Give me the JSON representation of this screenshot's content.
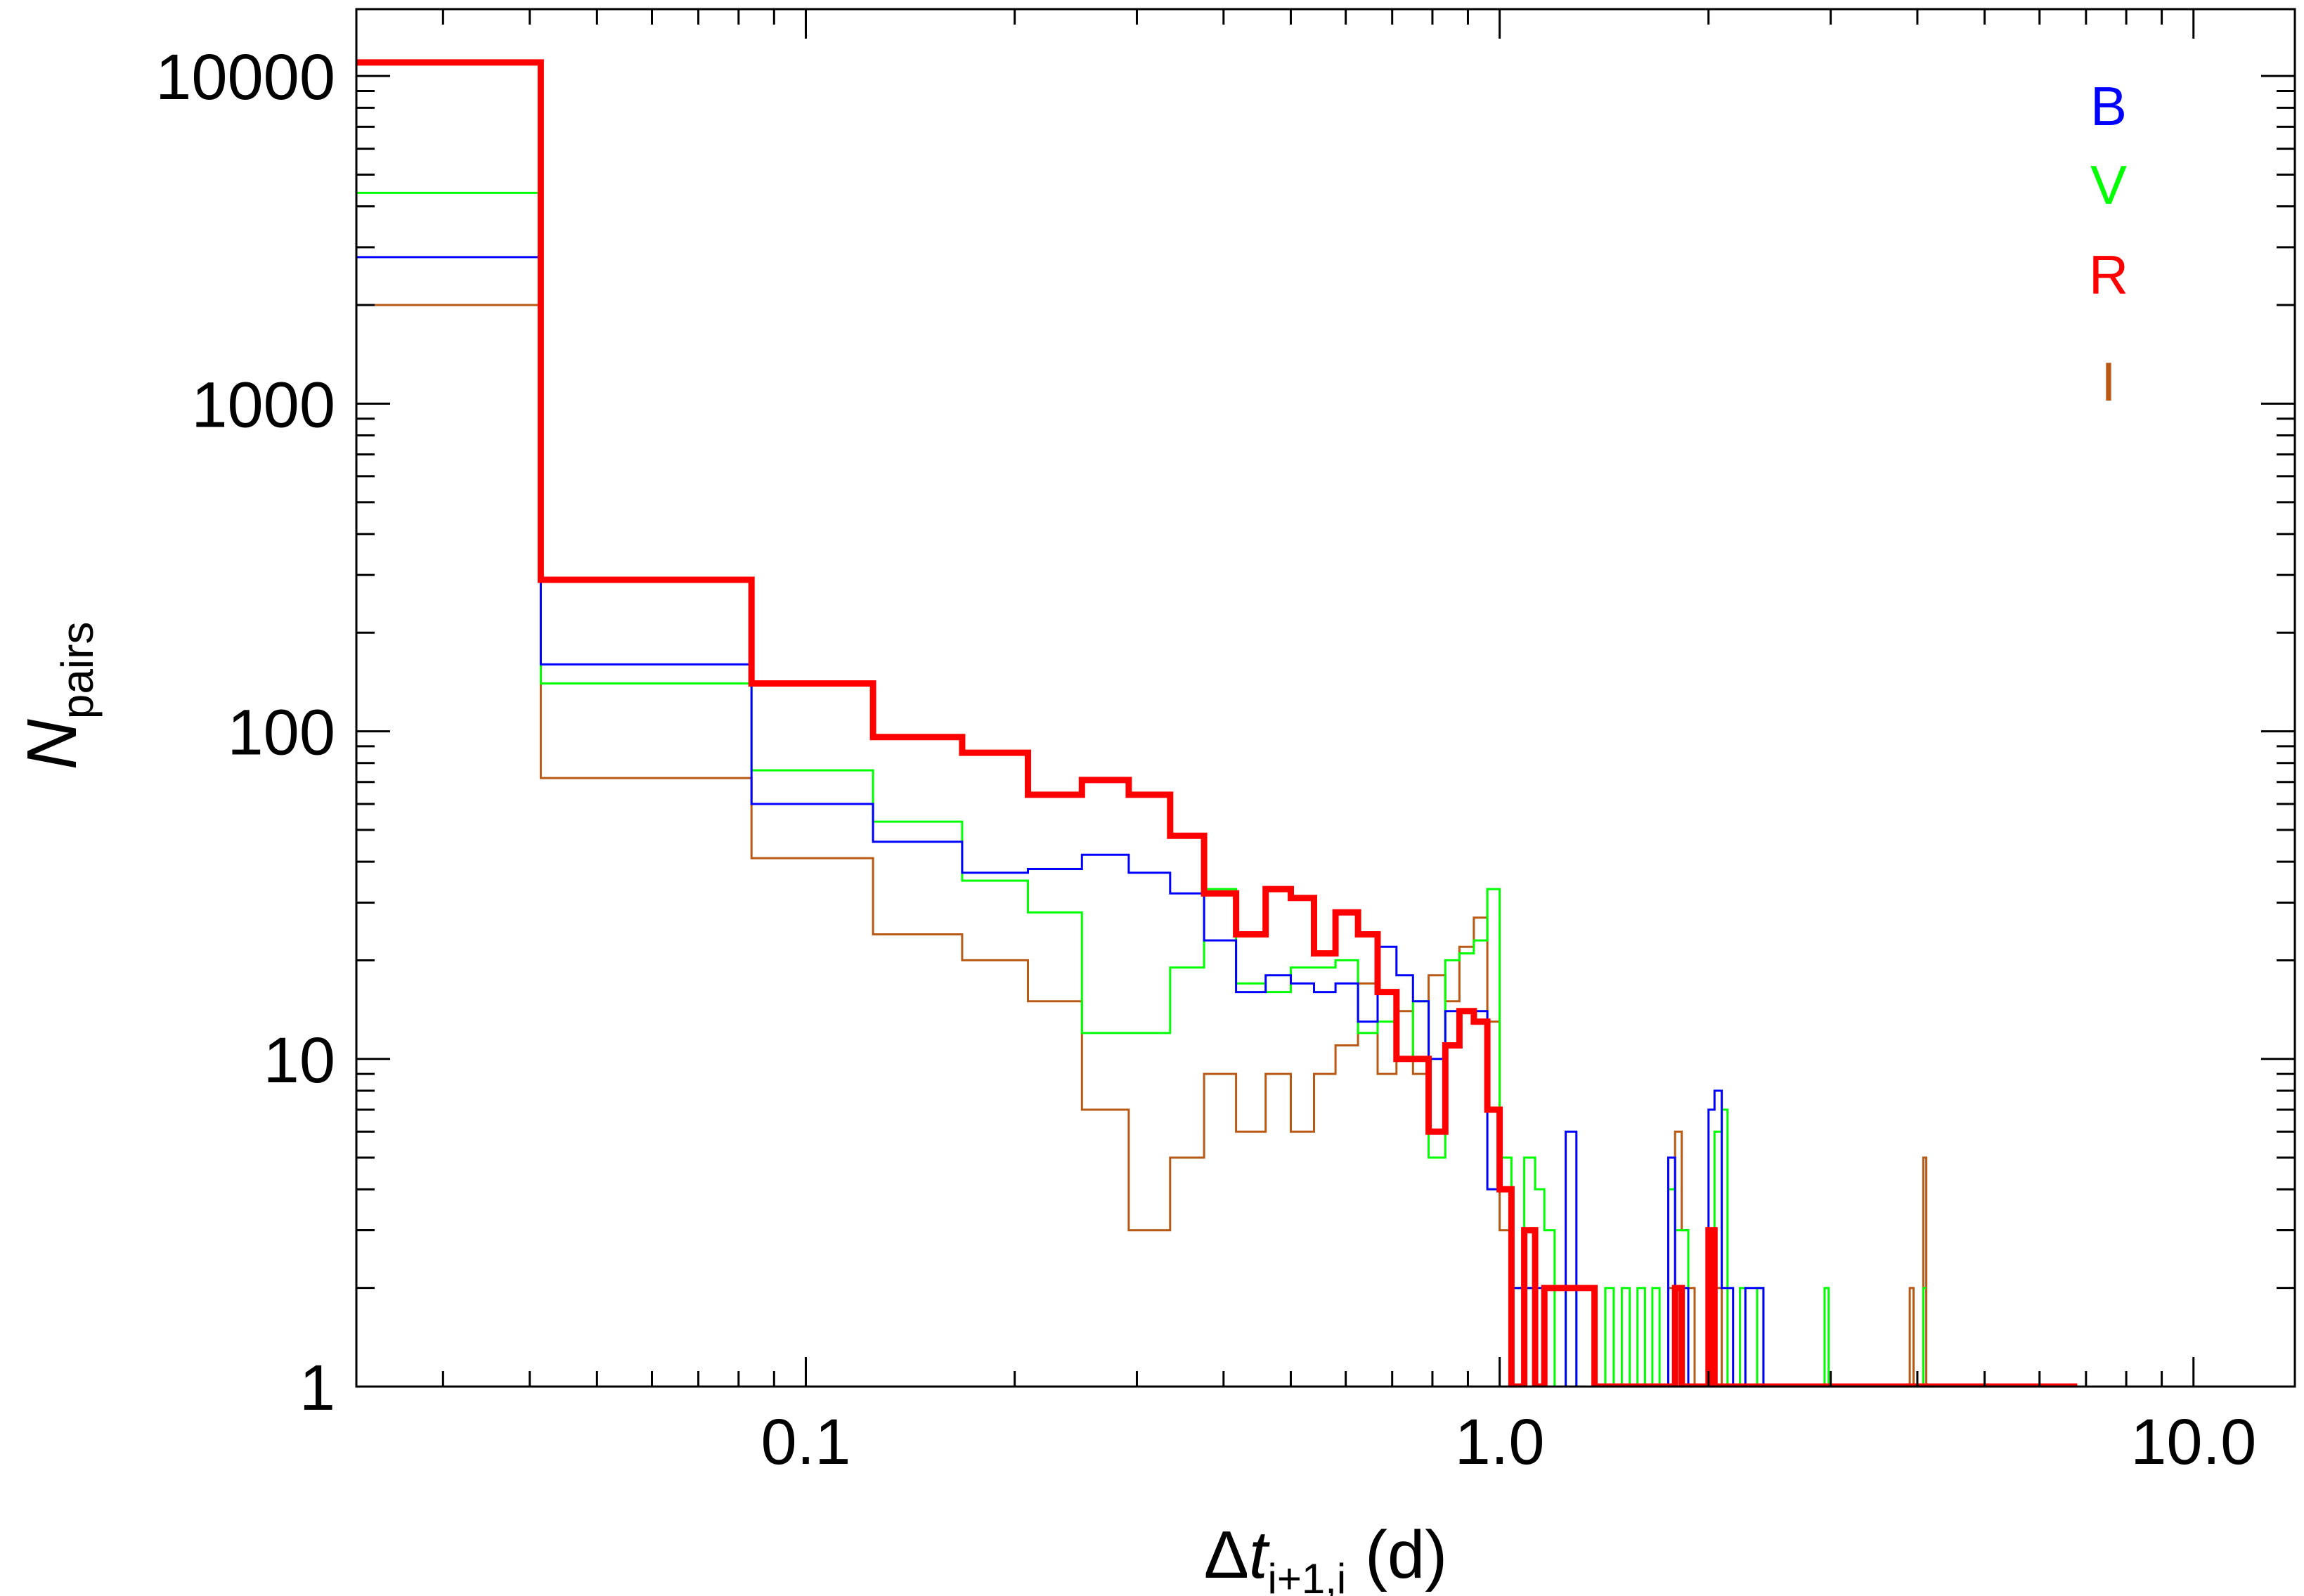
{
  "chart_data": {
    "type": "step-histogram",
    "x_scale": "log",
    "y_scale": "log",
    "xlim": [
      0.0225,
      14.0
    ],
    "ylim": [
      1,
      16000
    ],
    "grid": false,
    "legend_position": "top-right",
    "xlabel": {
      "main": "Δ",
      "var": "t",
      "sub": "i+1,i",
      "unit": " (d)"
    },
    "ylabel": {
      "var": "N",
      "sub": "pairs"
    },
    "x_tick_labels": [
      {
        "value": 0.1,
        "label": "0.1"
      },
      {
        "value": 1.0,
        "label": "1.0"
      },
      {
        "value": 10.0,
        "label": "10.0"
      }
    ],
    "y_tick_labels": [
      {
        "value": 1,
        "label": "1"
      },
      {
        "value": 10,
        "label": "10"
      },
      {
        "value": 100,
        "label": "100"
      },
      {
        "value": 1000,
        "label": "1000"
      },
      {
        "value": 10000,
        "label": "10000"
      }
    ],
    "series": [
      {
        "name": "B",
        "color": "#0000ff",
        "edges": [
          0.0225,
          0.0415,
          0.0835,
          0.125,
          0.168,
          0.209,
          0.25,
          0.292,
          0.335,
          0.375,
          0.417,
          0.46,
          0.5,
          0.54,
          0.58,
          0.625,
          0.667,
          0.71,
          0.75,
          0.79,
          0.835,
          0.875,
          0.918,
          0.96,
          1.0,
          1.04,
          1.085,
          1.125,
          1.16,
          1.2,
          1.245,
          1.29,
          1.33,
          1.37,
          1.42,
          1.46,
          1.5,
          1.54,
          1.58,
          1.62,
          1.66,
          1.7,
          1.75,
          1.79,
          1.83,
          1.87,
          1.91,
          1.96,
          2.0,
          2.04,
          2.09,
          2.13,
          2.17,
          2.22,
          2.26,
          2.31,
          2.35,
          2.4,
          6.8
        ],
        "values": [
          2800,
          160,
          60,
          46,
          37,
          38,
          42,
          37,
          32,
          23,
          16,
          18,
          17,
          16,
          17,
          13,
          22,
          18,
          15,
          10,
          14,
          14,
          14,
          4,
          4,
          2,
          2,
          2,
          1,
          1,
          6,
          1,
          1,
          1,
          1,
          1,
          1,
          1,
          1,
          1,
          1,
          1,
          5,
          2,
          2,
          1,
          1,
          1,
          7,
          8,
          2,
          2,
          1,
          1,
          2,
          2,
          2,
          1
        ]
      },
      {
        "name": "V",
        "color": "#00ff00",
        "edges": [
          0.0225,
          0.0415,
          0.0835,
          0.125,
          0.168,
          0.209,
          0.25,
          0.292,
          0.335,
          0.375,
          0.417,
          0.46,
          0.5,
          0.54,
          0.58,
          0.625,
          0.667,
          0.71,
          0.75,
          0.79,
          0.835,
          0.875,
          0.918,
          0.96,
          1.0,
          1.04,
          1.085,
          1.125,
          1.16,
          1.2,
          1.245,
          1.29,
          1.33,
          1.37,
          1.42,
          1.46,
          1.5,
          1.54,
          1.58,
          1.62,
          1.66,
          1.7,
          1.75,
          1.79,
          1.83,
          1.87,
          1.91,
          1.96,
          2.0,
          2.04,
          2.09,
          2.13,
          2.17,
          2.22,
          2.26,
          2.31,
          2.35,
          2.4,
          2.94,
          2.98,
          4.08,
          4.12
        ],
        "values": [
          4400,
          140,
          76,
          53,
          35,
          28,
          12,
          12,
          19,
          33,
          17,
          16,
          19,
          19,
          20,
          12,
          13,
          10,
          15,
          5,
          20,
          21,
          23,
          33,
          5,
          2,
          5,
          4,
          3,
          1,
          2,
          1,
          1,
          1,
          2,
          1,
          2,
          1,
          2,
          1,
          2,
          1,
          4,
          3,
          3,
          1,
          1,
          1,
          2,
          6,
          7,
          1,
          1,
          2,
          1,
          1,
          2,
          1,
          2,
          1,
          2
        ]
      },
      {
        "name": "R",
        "color": "#ff0000",
        "edges": [
          0.0225,
          0.0415,
          0.0835,
          0.125,
          0.168,
          0.209,
          0.25,
          0.292,
          0.335,
          0.375,
          0.417,
          0.46,
          0.5,
          0.54,
          0.58,
          0.625,
          0.667,
          0.71,
          0.75,
          0.79,
          0.835,
          0.875,
          0.918,
          0.96,
          1.0,
          1.04,
          1.085,
          1.125,
          1.16,
          1.2,
          1.245,
          1.29,
          1.33,
          1.37,
          1.42,
          1.46,
          1.5,
          1.54,
          1.58,
          1.62,
          1.66,
          1.7,
          1.75,
          1.79,
          1.83,
          1.87,
          1.91,
          1.96,
          2.0,
          2.04,
          2.09,
          2.13,
          2.17,
          6.8
        ],
        "values": [
          11000,
          290,
          140,
          96,
          86,
          64,
          71,
          64,
          48,
          32,
          24,
          33,
          31,
          21,
          28,
          24,
          16,
          10,
          10,
          6,
          11,
          14,
          13,
          7,
          4,
          1,
          3,
          1,
          2,
          2,
          2,
          2,
          2,
          1,
          1,
          1,
          1,
          1,
          1,
          1,
          1,
          1,
          1,
          2,
          1,
          1,
          1,
          1,
          3,
          1,
          1,
          1,
          1
        ]
      },
      {
        "name": "I",
        "color": "#b85a16",
        "edges": [
          0.0225,
          0.0415,
          0.0835,
          0.125,
          0.168,
          0.209,
          0.25,
          0.292,
          0.335,
          0.375,
          0.417,
          0.46,
          0.5,
          0.54,
          0.58,
          0.625,
          0.667,
          0.71,
          0.75,
          0.79,
          0.835,
          0.875,
          0.918,
          0.96,
          1.0,
          1.04,
          1.085,
          1.125,
          1.16,
          1.2,
          1.245,
          1.29,
          1.33,
          1.37,
          1.42,
          1.46,
          1.5,
          1.54,
          1.58,
          1.62,
          1.66,
          1.7,
          1.75,
          1.79,
          1.83,
          1.87,
          1.91,
          1.96,
          2.0,
          2.04,
          2.09,
          2.13,
          2.17,
          2.22,
          2.26,
          2.31,
          2.35,
          2.4,
          2.7,
          3.9,
          3.95,
          4.08,
          4.12,
          14.0
        ],
        "values": [
          2000,
          72,
          41,
          24,
          20,
          15,
          7,
          3,
          5,
          9,
          6,
          9,
          6,
          9,
          11,
          17,
          9,
          14,
          9,
          18,
          15,
          22,
          27,
          13,
          3,
          2,
          2,
          1,
          1,
          1,
          1,
          1,
          1,
          1,
          1,
          1,
          1,
          1,
          1,
          1,
          1,
          1,
          2,
          6,
          3,
          2,
          1,
          1,
          2,
          2,
          1,
          1,
          1,
          1,
          1,
          1,
          1,
          1,
          1,
          2,
          1,
          5,
          1
        ]
      }
    ]
  }
}
